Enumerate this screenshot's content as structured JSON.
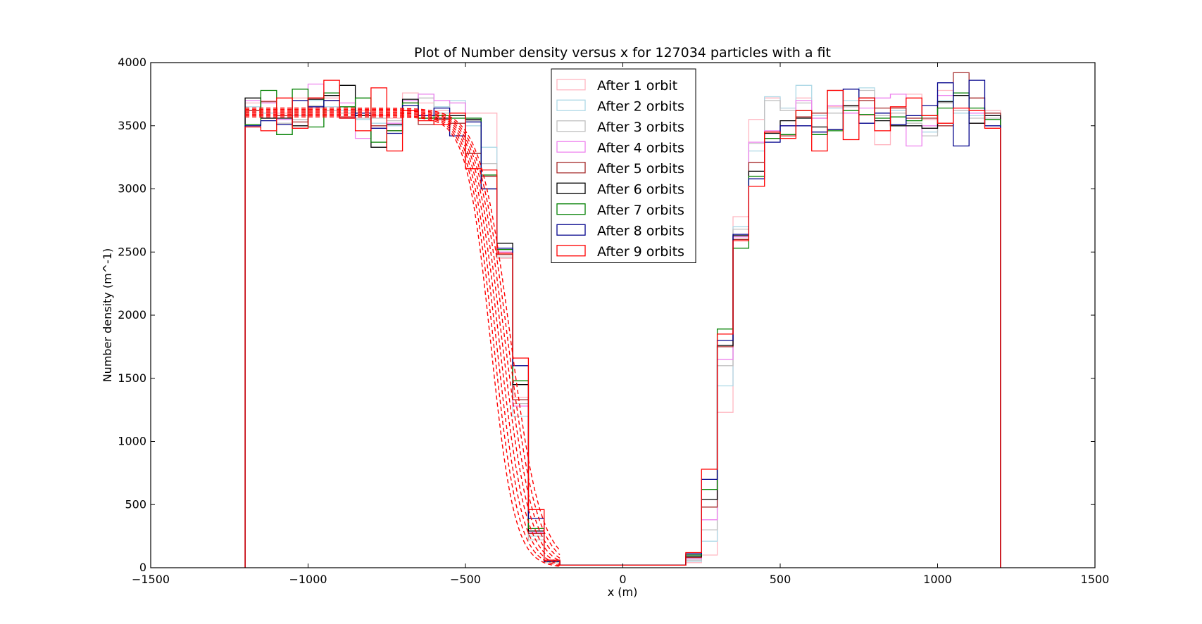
{
  "chart_data": {
    "type": "histogram-step",
    "title": "Plot of Number density versus x for 127034 particles with a fit",
    "xlabel": "x (m)",
    "ylabel": "Number density (m^-1)",
    "xlim": [
      -1500,
      1500
    ],
    "ylim": [
      0,
      4000
    ],
    "xticks": [
      -1500,
      -1000,
      -500,
      0,
      500,
      1000,
      1500
    ],
    "yticks": [
      0,
      500,
      1000,
      1500,
      2000,
      2500,
      3000,
      3500,
      4000
    ],
    "xtick_labels": [
      "−1500",
      "−1000",
      "−500",
      "0",
      "500",
      "1000",
      "1500"
    ],
    "ytick_labels": [
      "0",
      "500",
      "1000",
      "1500",
      "2000",
      "2500",
      "3000",
      "3500",
      "4000"
    ],
    "legend_position": "upper-center",
    "bin_edges": [
      -1200,
      -1150,
      -1100,
      -1050,
      -1000,
      -950,
      -900,
      -850,
      -800,
      -750,
      -700,
      -650,
      -600,
      -550,
      -500,
      -450,
      -400,
      -350,
      -300,
      -250,
      -200,
      -150,
      -100,
      -50,
      0,
      50,
      100,
      150,
      200,
      250,
      300,
      350,
      400,
      450,
      500,
      550,
      600,
      650,
      700,
      750,
      800,
      850,
      900,
      950,
      1000,
      1050,
      1100,
      1150,
      1200
    ],
    "series": [
      {
        "name": "After 1 orbit",
        "color": "#ffb6c1",
        "values": [
          3680,
          3700,
          3600,
          3720,
          3640,
          3720,
          3680,
          3620,
          3580,
          3560,
          3760,
          3680,
          3620,
          3600,
          3600,
          3600,
          2450,
          1350,
          280,
          60,
          20,
          20,
          20,
          20,
          20,
          20,
          20,
          20,
          40,
          100,
          1230,
          2780,
          3550,
          3720,
          3640,
          3720,
          3560,
          3650,
          3600,
          3580,
          3350,
          3600,
          3750,
          3550,
          3780,
          3620,
          3520,
          3620,
          3900
        ]
      },
      {
        "name": "After 2 orbits",
        "color": "#add8e6",
        "values": [
          3650,
          3600,
          3550,
          3580,
          3700,
          3650,
          3620,
          3550,
          3520,
          3500,
          3700,
          3750,
          3650,
          3700,
          3500,
          3330,
          2500,
          1200,
          250,
          50,
          20,
          20,
          20,
          20,
          20,
          20,
          20,
          20,
          50,
          210,
          1440,
          2700,
          3300,
          3730,
          3640,
          3820,
          3580,
          3640,
          3700,
          3800,
          3600,
          3620,
          3500,
          3450,
          3700,
          3600,
          3580,
          3600,
          3700
        ]
      },
      {
        "name": "After 3 orbits",
        "color": "#c0c0c0",
        "values": [
          3620,
          3560,
          3520,
          3550,
          3660,
          3620,
          3600,
          3560,
          3560,
          3540,
          3680,
          3720,
          3600,
          3680,
          3540,
          3200,
          2460,
          1300,
          220,
          40,
          20,
          20,
          20,
          20,
          20,
          20,
          20,
          20,
          60,
          300,
          1600,
          2680,
          3360,
          3700,
          3620,
          3680,
          3560,
          3600,
          3650,
          3780,
          3580,
          3600,
          3520,
          3420,
          3680,
          3620,
          3560,
          3560,
          3640
        ]
      },
      {
        "name": "After 4 orbits",
        "color": "#ee82ee",
        "values": [
          3700,
          3680,
          3550,
          3480,
          3830,
          3700,
          3680,
          3400,
          3480,
          3520,
          3700,
          3750,
          3700,
          3680,
          3560,
          3100,
          2500,
          1280,
          280,
          50,
          20,
          20,
          20,
          20,
          20,
          20,
          20,
          20,
          70,
          380,
          1650,
          2620,
          3370,
          3460,
          3500,
          3700,
          3560,
          3660,
          3600,
          3640,
          3720,
          3750,
          3340,
          3500,
          3740,
          3640,
          3600,
          3580,
          3620
        ]
      },
      {
        "name": "After 5 orbits",
        "color": "#a52a2a",
        "values": [
          3620,
          3690,
          3580,
          3530,
          3720,
          3700,
          3570,
          3580,
          3500,
          3460,
          3680,
          3510,
          3550,
          3520,
          3280,
          3100,
          2480,
          1330,
          270,
          50,
          20,
          20,
          20,
          20,
          20,
          20,
          20,
          20,
          80,
          480,
          1750,
          2600,
          3210,
          3400,
          3420,
          3570,
          3600,
          3780,
          3660,
          3700,
          3640,
          3640,
          3560,
          3560,
          3500,
          3920,
          3720,
          3600,
          3440
        ]
      },
      {
        "name": "After 6 orbits",
        "color": "#000000",
        "values": [
          3720,
          3560,
          3560,
          3500,
          3710,
          3740,
          3820,
          3580,
          3330,
          3510,
          3710,
          3560,
          3560,
          3580,
          3550,
          3000,
          2570,
          1450,
          290,
          50,
          20,
          20,
          20,
          20,
          20,
          20,
          20,
          20,
          90,
          540,
          1760,
          2630,
          3140,
          3440,
          3540,
          3560,
          3490,
          3470,
          3660,
          3720,
          3540,
          3500,
          3500,
          3480,
          3690,
          3740,
          3520,
          3580,
          3580
        ]
      },
      {
        "name": "After 7 orbits",
        "color": "#008000",
        "values": [
          3510,
          3780,
          3430,
          3790,
          3490,
          3760,
          3650,
          3720,
          3370,
          3460,
          3680,
          3560,
          3580,
          3560,
          3560,
          3110,
          2520,
          1480,
          310,
          50,
          20,
          20,
          20,
          20,
          20,
          20,
          20,
          20,
          100,
          620,
          1890,
          2530,
          3100,
          3400,
          3430,
          3620,
          3430,
          3460,
          3620,
          3590,
          3560,
          3570,
          3540,
          3580,
          3640,
          3760,
          3640,
          3550,
          3550
        ]
      },
      {
        "name": "After 8 orbits",
        "color": "#00008b",
        "values": [
          3500,
          3540,
          3510,
          3700,
          3650,
          3700,
          3560,
          3600,
          3480,
          3440,
          3660,
          3580,
          3640,
          3420,
          3530,
          3000,
          2530,
          1600,
          390,
          50,
          20,
          20,
          20,
          20,
          20,
          20,
          20,
          20,
          110,
          700,
          1800,
          2640,
          3080,
          3370,
          3500,
          3500,
          3450,
          3470,
          3790,
          3520,
          3600,
          3510,
          3580,
          3660,
          3840,
          3340,
          3860,
          3500,
          3800
        ]
      },
      {
        "name": "After 9 orbits",
        "color": "#ff0000",
        "values": [
          3490,
          3460,
          3720,
          3480,
          3720,
          3860,
          3560,
          3460,
          3800,
          3300,
          3620,
          3540,
          3510,
          3600,
          3160,
          3150,
          2490,
          1660,
          460,
          60,
          20,
          20,
          20,
          20,
          20,
          20,
          20,
          20,
          120,
          780,
          1850,
          2590,
          3020,
          3450,
          3400,
          3620,
          3300,
          3780,
          3390,
          3720,
          3460,
          3650,
          3720,
          3580,
          3520,
          3640,
          3620,
          3480,
          3540
        ]
      }
    ],
    "fit_curves": {
      "style": "dashed",
      "color": "#ff0000",
      "plateau_levels": [
        3570,
        3580,
        3590,
        3600,
        3610,
        3620,
        3630,
        3640
      ],
      "x_start": -1200,
      "x_end": -200
    }
  }
}
